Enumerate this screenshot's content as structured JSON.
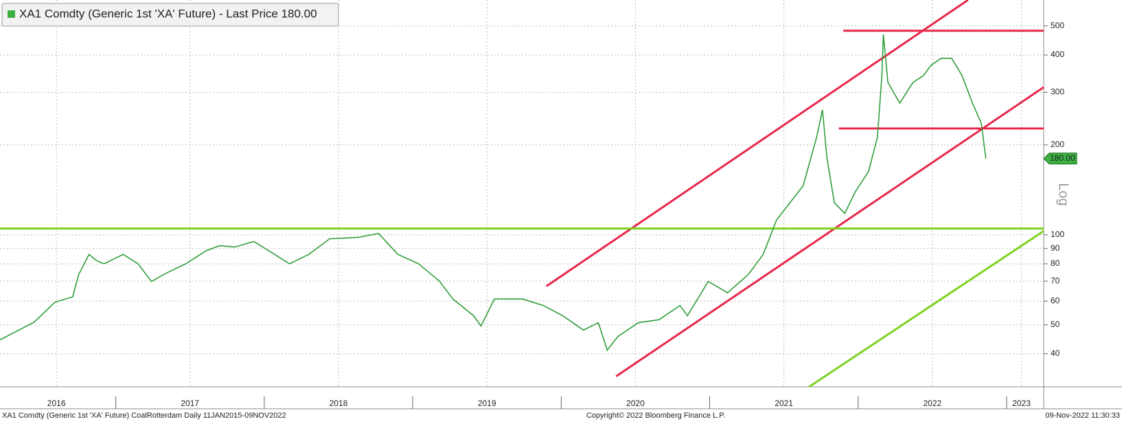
{
  "chart_data": {
    "type": "line",
    "legend_text": "XA1 Comdty (Generic 1st 'XA' Future) - Last Price 180.00",
    "y_axis_label": "Log",
    "log_scale": true,
    "grid": true,
    "legend_position": "top-left",
    "footer_left": "XA1 Comdty (Generic 1st 'XA' Future) CoalRotterdam  Daily 11JAN2015-09NOV2022",
    "footer_center": "Copyright© 2022 Bloomberg Finance L.P.",
    "footer_right": "09-Nov-2022 11:30:33",
    "xlim": [
      2016.22,
      2023.25
    ],
    "ylim": [
      31,
      611
    ],
    "xticks": [
      {
        "value": 2016.6,
        "label": "2016"
      },
      {
        "value": 2017.5,
        "label": "2017"
      },
      {
        "value": 2018.5,
        "label": "2018"
      },
      {
        "value": 2019.5,
        "label": "2019"
      },
      {
        "value": 2020.5,
        "label": "2020"
      },
      {
        "value": 2021.5,
        "label": "2021"
      },
      {
        "value": 2022.5,
        "label": "2022"
      },
      {
        "value": 2023.1,
        "label": "2023"
      }
    ],
    "yticks": [
      40,
      50,
      60,
      70,
      80,
      90,
      100,
      200,
      300,
      400,
      500
    ],
    "x": [
      2016.22,
      2016.45,
      2016.59,
      2016.71,
      2016.75,
      2016.82,
      2016.87,
      2016.92,
      2017.05,
      2017.15,
      2017.24,
      2017.33,
      2017.47,
      2017.61,
      2017.7,
      2017.8,
      2017.93,
      2018.07,
      2018.17,
      2018.3,
      2018.44,
      2018.63,
      2018.77,
      2018.9,
      2019.04,
      2019.18,
      2019.27,
      2019.41,
      2019.46,
      2019.55,
      2019.74,
      2019.88,
      2020.01,
      2020.15,
      2020.25,
      2020.31,
      2020.38,
      2020.52,
      2020.66,
      2020.8,
      2020.85,
      2020.99,
      2021.12,
      2021.26,
      2021.36,
      2021.45,
      2021.54,
      2021.63,
      2021.72,
      2021.76,
      2021.79,
      2021.84,
      2021.91,
      2021.98,
      2022.07,
      2022.13,
      2022.16,
      2022.17,
      2022.2,
      2022.28,
      2022.37,
      2022.44,
      2022.49,
      2022.56,
      2022.63,
      2022.7,
      2022.77,
      2022.83,
      2022.86
    ],
    "series": [
      {
        "name": "XA1 Comdty",
        "color": "#2f9e3a",
        "values": [
          44.5,
          51,
          59.5,
          62,
          73.6,
          86,
          82,
          80,
          86,
          80,
          69.8,
          74,
          80,
          88.5,
          92,
          91,
          95,
          86,
          80,
          86,
          97,
          98,
          101,
          86,
          80,
          70,
          61,
          53.6,
          49.5,
          61,
          61,
          58,
          53.6,
          48,
          50.8,
          41.1,
          45.6,
          50.8,
          52,
          58,
          53.6,
          69.8,
          64,
          73.6,
          86,
          112,
          128,
          146,
          212,
          262,
          181,
          128,
          118,
          139,
          163,
          212,
          341,
          469,
          324,
          276,
          324,
          341,
          369,
          390,
          390,
          341,
          276,
          236,
          180
        ]
      }
    ],
    "last_price": {
      "value": 180,
      "label": "180.00",
      "color": "#3cb043"
    },
    "trend_lines": [
      {
        "x": [
          2019.9,
          2022.74
        ],
        "y": [
          67.3,
          611
        ],
        "color": "#e8274b"
      },
      {
        "x": [
          2020.37,
          2023.25
        ],
        "y": [
          33.6,
          312
        ],
        "color": "#e8274b"
      },
      {
        "x": [
          2021.9,
          2023.25
        ],
        "y": [
          482,
          482
        ],
        "color": "#e8274b"
      },
      {
        "x": [
          2021.87,
          2023.25
        ],
        "y": [
          227,
          227
        ],
        "color": "#e8274b"
      },
      {
        "x": [
          2016.22,
          2023.25
        ],
        "y": [
          105,
          105
        ],
        "color": "#7ed321"
      },
      {
        "x": [
          2021.67,
          2023.25
        ],
        "y": [
          31,
          103
        ],
        "color": "#7ed321"
      }
    ]
  }
}
